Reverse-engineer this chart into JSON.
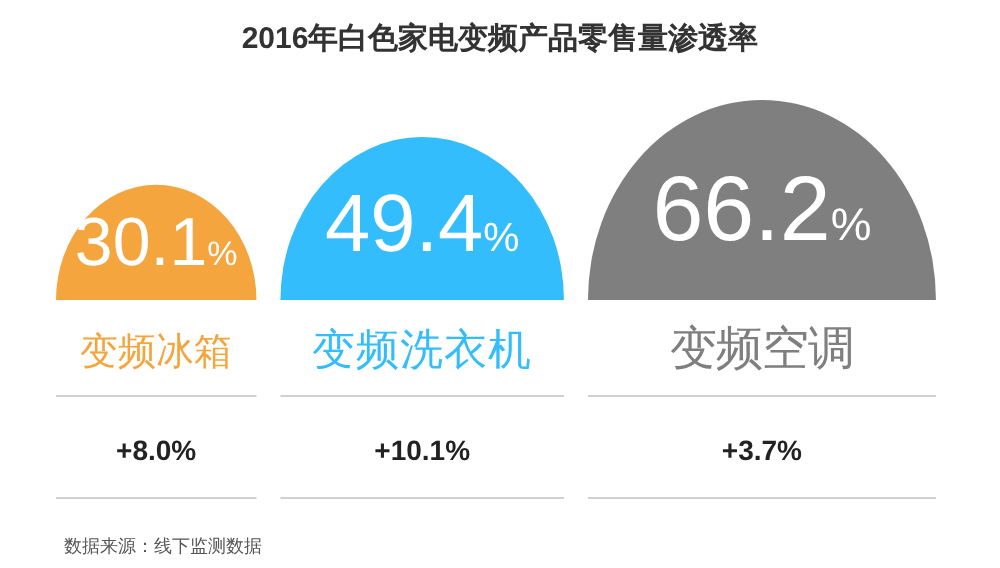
{
  "chart_data": {
    "type": "other",
    "title": "2016年白色家电变频产品零售量渗透率",
    "categories": [
      "变频冰箱",
      "变频洗衣机",
      "变频空调"
    ],
    "values": [
      30.1,
      49.4,
      66.2
    ],
    "value_labels": [
      "30.1%",
      "49.4%",
      "66.2%"
    ],
    "colors": [
      "#f5a53e",
      "#33bdfd",
      "#7f7f7f"
    ],
    "annotations": [
      {
        "text": "+8.0%",
        "x": "变频冰箱"
      },
      {
        "text": "+10.1%",
        "x": "变频洗衣机"
      },
      {
        "text": "+3.7%",
        "x": "变频空调"
      },
      "数据来源：线下监测数据"
    ]
  }
}
